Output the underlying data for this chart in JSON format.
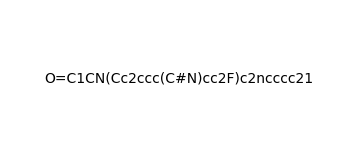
{
  "smiles": "O=C1CN(Cc2ccc(C#N)cc2F)c2ncccc21",
  "title": "",
  "background_color": "#ffffff",
  "line_color": "#1a0a00",
  "label_color_N": "#1a0a00",
  "label_color_O": "#1a0a00",
  "label_color_F": "#1a0a00",
  "label_color_CN": "#8b0000",
  "figsize": [
    3.58,
    1.57
  ],
  "dpi": 100
}
